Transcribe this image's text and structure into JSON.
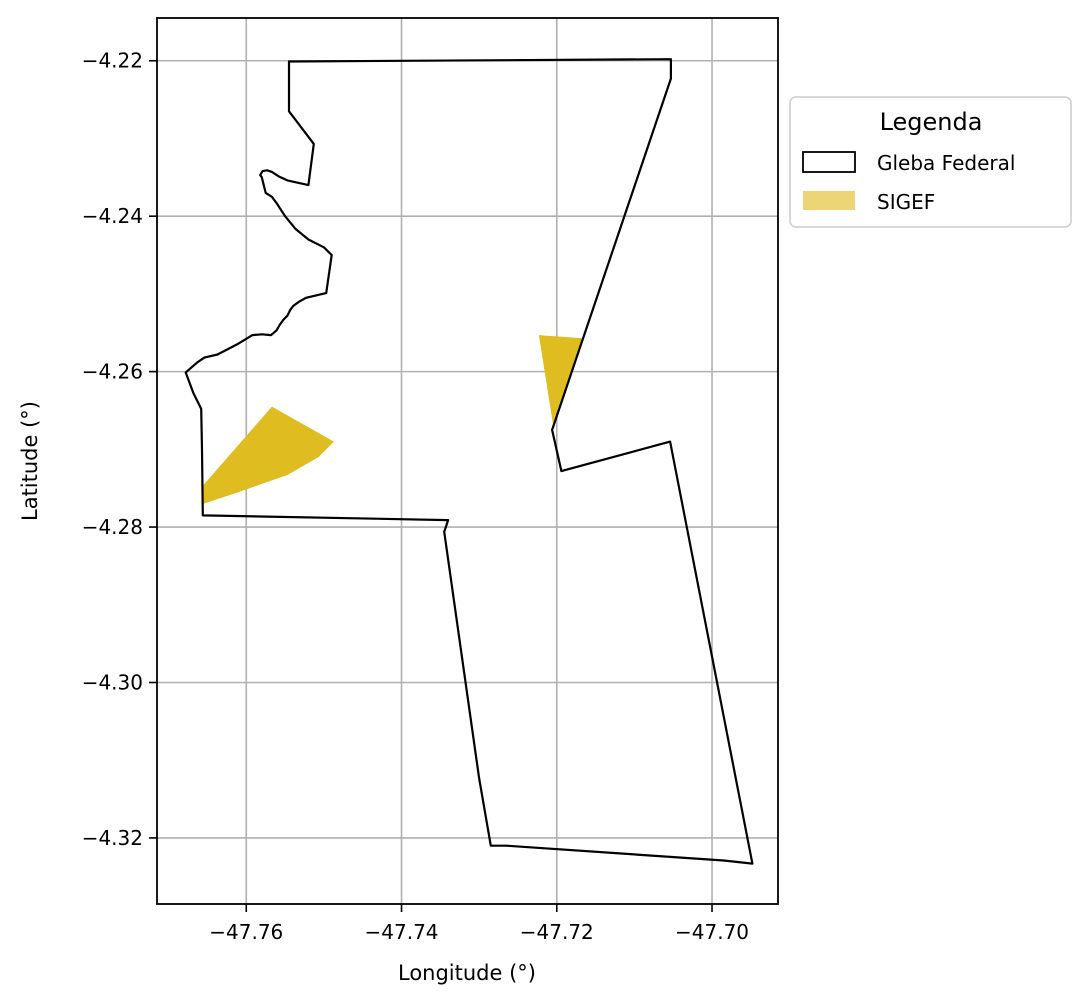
{
  "chart_data": {
    "type": "map",
    "xlabel": "Longitude (°)",
    "ylabel": "Latitude (°)",
    "xlim": [
      -47.7715,
      -47.6915
    ],
    "ylim": [
      -4.3285,
      -4.2145
    ],
    "grid": true,
    "x_ticks": [
      {
        "value": -47.76,
        "label": "−47.76"
      },
      {
        "value": -47.74,
        "label": "−47.74"
      },
      {
        "value": -47.72,
        "label": "−47.72"
      },
      {
        "value": -47.7,
        "label": "−47.70"
      }
    ],
    "y_ticks": [
      {
        "value": -4.22,
        "label": "−4.22"
      },
      {
        "value": -4.24,
        "label": "−4.24"
      },
      {
        "value": -4.26,
        "label": "−4.26"
      },
      {
        "value": -4.28,
        "label": "−4.28"
      },
      {
        "value": -4.3,
        "label": "−4.30"
      },
      {
        "value": -4.32,
        "label": "−4.32"
      }
    ],
    "legend": {
      "title": "Legenda",
      "placement": "outside-upper-right",
      "entries": [
        {
          "label": "Gleba Federal",
          "style": "outline",
          "color": "#000000"
        },
        {
          "label": "SIGEF",
          "style": "fill",
          "color": "#ebd574"
        }
      ]
    },
    "layers": {
      "sigef": {
        "color": "#dfbc20",
        "polygons": [
          [
            [
              -47.7657,
              -4.2748
            ],
            [
              -47.7567,
              -4.2645
            ],
            [
              -47.7487,
              -4.269
            ],
            [
              -47.7507,
              -4.271
            ],
            [
              -47.7547,
              -4.2733
            ],
            [
              -47.761,
              -4.2755
            ],
            [
              -47.7655,
              -4.277
            ]
          ],
          [
            [
              -47.7223,
              -4.2553
            ],
            [
              -47.7167,
              -4.2557
            ],
            [
              -47.7205,
              -4.2667
            ]
          ]
        ]
      },
      "gleba_federal": {
        "color": "#000000",
        "polygon": [
          [
            -47.7545,
            -4.2201
          ],
          [
            -47.7053,
            -4.2198
          ],
          [
            -47.7053,
            -4.2223
          ],
          [
            -47.7206,
            -4.2675
          ],
          [
            -47.7194,
            -4.2728
          ],
          [
            -47.7054,
            -4.269
          ],
          [
            -47.6948,
            -4.3233
          ],
          [
            -47.6985,
            -4.3229
          ],
          [
            -47.7265,
            -4.321
          ],
          [
            -47.7285,
            -4.321
          ],
          [
            -47.73,
            -4.3123
          ],
          [
            -47.7345,
            -4.2806
          ],
          [
            -47.7343,
            -4.28
          ],
          [
            -47.734,
            -4.2791
          ],
          [
            -47.7656,
            -4.2785
          ],
          [
            -47.7657,
            -4.27
          ],
          [
            -47.7658,
            -4.2648
          ],
          [
            -47.7668,
            -4.2628
          ],
          [
            -47.7678,
            -4.2601
          ],
          [
            -47.7663,
            -4.2588
          ],
          [
            -47.7654,
            -4.2582
          ],
          [
            -47.7637,
            -4.2578
          ],
          [
            -47.7612,
            -4.2565
          ],
          [
            -47.7592,
            -4.2553
          ],
          [
            -47.758,
            -4.2552
          ],
          [
            -47.7568,
            -4.2553
          ],
          [
            -47.7561,
            -4.2547
          ],
          [
            -47.7557,
            -4.254
          ],
          [
            -47.7552,
            -4.2533
          ],
          [
            -47.7547,
            -4.2528
          ],
          [
            -47.7543,
            -4.252
          ],
          [
            -47.7539,
            -4.2515
          ],
          [
            -47.7532,
            -4.251
          ],
          [
            -47.7523,
            -4.2505
          ],
          [
            -47.7506,
            -4.2501
          ],
          [
            -47.7497,
            -4.2499
          ],
          [
            -47.749,
            -4.245
          ],
          [
            -47.75,
            -4.244
          ],
          [
            -47.752,
            -4.243
          ],
          [
            -47.7537,
            -4.2416
          ],
          [
            -47.755,
            -4.24
          ],
          [
            -47.7561,
            -4.2383
          ],
          [
            -47.7567,
            -4.2375
          ],
          [
            -47.7575,
            -4.237
          ],
          [
            -47.758,
            -4.235
          ],
          [
            -47.7582,
            -4.2347
          ],
          [
            -47.7579,
            -4.2342
          ],
          [
            -47.7573,
            -4.2341
          ],
          [
            -47.7567,
            -4.2343
          ],
          [
            -47.7558,
            -4.2349
          ],
          [
            -47.7547,
            -4.2354
          ],
          [
            -47.752,
            -4.236
          ],
          [
            -47.7513,
            -4.2307
          ],
          [
            -47.7545,
            -4.2265
          ]
        ]
      }
    }
  }
}
